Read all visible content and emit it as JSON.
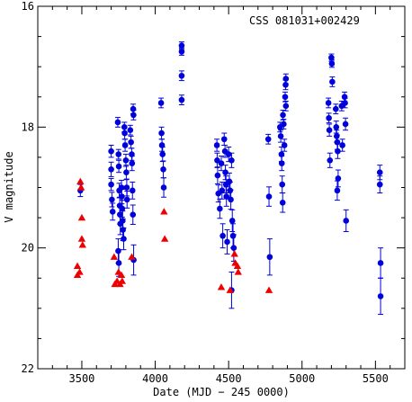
{
  "chart_data": {
    "type": "scatter",
    "annotation": "CSS 081031+002429",
    "xlabel": "Date (MJD − 245 0000)",
    "ylabel": "V magnitude",
    "xlim": [
      3200,
      5700
    ],
    "ylim": [
      22,
      16
    ],
    "y_inverted": true,
    "grid": false,
    "xticks": [
      3500,
      4000,
      4500,
      5000,
      5500
    ],
    "yticks": [
      16,
      18,
      20,
      22
    ],
    "colors": {
      "detections": "#0000dd",
      "limits": "#ee0000"
    },
    "series": [
      {
        "marker": "circle",
        "points": [
          {
            "x": 3490,
            "y": 19.05,
            "e": 0.1
          },
          {
            "x": 3700,
            "y": 18.4,
            "e": 0.1
          },
          {
            "x": 3700,
            "y": 18.7,
            "e": 0.12
          },
          {
            "x": 3700,
            "y": 18.95,
            "e": 0.1
          },
          {
            "x": 3705,
            "y": 19.2,
            "e": 0.12
          },
          {
            "x": 3710,
            "y": 19.4,
            "e": 0.14
          },
          {
            "x": 3745,
            "y": 17.92,
            "e": 0.08
          },
          {
            "x": 3750,
            "y": 18.45,
            "e": 0.08
          },
          {
            "x": 3752,
            "y": 18.65,
            "e": 0.1
          },
          {
            "x": 3755,
            "y": 19.05,
            "e": 0.12
          },
          {
            "x": 3758,
            "y": 19.3,
            "e": 0.14
          },
          {
            "x": 3760,
            "y": 19.45,
            "e": 0.16
          },
          {
            "x": 3762,
            "y": 19.6,
            "e": 0.18
          },
          {
            "x": 3748,
            "y": 20.05,
            "e": 0.2
          },
          {
            "x": 3752,
            "y": 20.25,
            "e": 0.22
          },
          {
            "x": 3770,
            "y": 19.0,
            "e": 0.12
          },
          {
            "x": 3772,
            "y": 19.15,
            "e": 0.12
          },
          {
            "x": 3775,
            "y": 19.35,
            "e": 0.14
          },
          {
            "x": 3778,
            "y": 19.55,
            "e": 0.16
          },
          {
            "x": 3780,
            "y": 19.7,
            "e": 0.18
          },
          {
            "x": 3785,
            "y": 19.85,
            "e": 0.18
          },
          {
            "x": 3790,
            "y": 18.0,
            "e": 0.08
          },
          {
            "x": 3792,
            "y": 18.1,
            "e": 0.1
          },
          {
            "x": 3795,
            "y": 18.3,
            "e": 0.1
          },
          {
            "x": 3800,
            "y": 18.55,
            "e": 0.1
          },
          {
            "x": 3803,
            "y": 18.75,
            "e": 0.12
          },
          {
            "x": 3806,
            "y": 19.0,
            "e": 0.14
          },
          {
            "x": 3808,
            "y": 19.2,
            "e": 0.14
          },
          {
            "x": 3830,
            "y": 18.05,
            "e": 0.08
          },
          {
            "x": 3835,
            "y": 18.25,
            "e": 0.1
          },
          {
            "x": 3840,
            "y": 18.45,
            "e": 0.1
          },
          {
            "x": 3842,
            "y": 18.6,
            "e": 0.12
          },
          {
            "x": 3845,
            "y": 19.05,
            "e": 0.14
          },
          {
            "x": 3848,
            "y": 19.45,
            "e": 0.16
          },
          {
            "x": 3850,
            "y": 17.7,
            "e": 0.08
          },
          {
            "x": 3852,
            "y": 17.8,
            "e": 0.08
          },
          {
            "x": 3853,
            "y": 20.2,
            "e": 0.25
          },
          {
            "x": 4040,
            "y": 17.6,
            "e": 0.08
          },
          {
            "x": 4043,
            "y": 18.1,
            "e": 0.1
          },
          {
            "x": 4046,
            "y": 18.3,
            "e": 0.1
          },
          {
            "x": 4050,
            "y": 18.45,
            "e": 0.12
          },
          {
            "x": 4055,
            "y": 18.7,
            "e": 0.14
          },
          {
            "x": 4058,
            "y": 19.0,
            "e": 0.16
          },
          {
            "x": 4180,
            "y": 16.65,
            "e": 0.06
          },
          {
            "x": 4180,
            "y": 16.75,
            "e": 0.06
          },
          {
            "x": 4180,
            "y": 17.15,
            "e": 0.08
          },
          {
            "x": 4180,
            "y": 17.55,
            "e": 0.08
          },
          {
            "x": 4420,
            "y": 18.3,
            "e": 0.1
          },
          {
            "x": 4422,
            "y": 18.55,
            "e": 0.12
          },
          {
            "x": 4425,
            "y": 18.8,
            "e": 0.14
          },
          {
            "x": 4430,
            "y": 19.1,
            "e": 0.14
          },
          {
            "x": 4440,
            "y": 19.35,
            "e": 0.16
          },
          {
            "x": 4450,
            "y": 18.6,
            "e": 0.12
          },
          {
            "x": 4455,
            "y": 19.05,
            "e": 0.14
          },
          {
            "x": 4460,
            "y": 19.8,
            "e": 0.2
          },
          {
            "x": 4470,
            "y": 18.2,
            "e": 0.1
          },
          {
            "x": 4475,
            "y": 18.4,
            "e": 0.1
          },
          {
            "x": 4478,
            "y": 18.75,
            "e": 0.12
          },
          {
            "x": 4482,
            "y": 18.95,
            "e": 0.14
          },
          {
            "x": 4485,
            "y": 19.15,
            "e": 0.16
          },
          {
            "x": 4490,
            "y": 19.9,
            "e": 0.2
          },
          {
            "x": 4500,
            "y": 18.45,
            "e": 0.12
          },
          {
            "x": 4505,
            "y": 18.9,
            "e": 0.14
          },
          {
            "x": 4510,
            "y": 19.05,
            "e": 0.14
          },
          {
            "x": 4515,
            "y": 19.2,
            "e": 0.16
          },
          {
            "x": 4520,
            "y": 18.55,
            "e": 0.12
          },
          {
            "x": 4525,
            "y": 19.55,
            "e": 0.18
          },
          {
            "x": 4530,
            "y": 19.8,
            "e": 0.2
          },
          {
            "x": 4535,
            "y": 20.0,
            "e": 0.22
          },
          {
            "x": 4520,
            "y": 20.7,
            "e": 0.3
          },
          {
            "x": 4770,
            "y": 18.2,
            "e": 0.08
          },
          {
            "x": 4775,
            "y": 19.15,
            "e": 0.16
          },
          {
            "x": 4780,
            "y": 20.15,
            "e": 0.3
          },
          {
            "x": 4850,
            "y": 18.0,
            "e": 0.08
          },
          {
            "x": 4855,
            "y": 18.15,
            "e": 0.1
          },
          {
            "x": 4860,
            "y": 18.45,
            "e": 0.12
          },
          {
            "x": 4862,
            "y": 18.6,
            "e": 0.12
          },
          {
            "x": 4865,
            "y": 18.95,
            "e": 0.14
          },
          {
            "x": 4868,
            "y": 19.25,
            "e": 0.16
          },
          {
            "x": 4870,
            "y": 17.8,
            "e": 0.08
          },
          {
            "x": 4875,
            "y": 17.95,
            "e": 0.08
          },
          {
            "x": 4880,
            "y": 18.3,
            "e": 0.1
          },
          {
            "x": 4885,
            "y": 17.5,
            "e": 0.08
          },
          {
            "x": 4888,
            "y": 17.3,
            "e": 0.08
          },
          {
            "x": 4890,
            "y": 17.2,
            "e": 0.08
          },
          {
            "x": 4890,
            "y": 17.65,
            "e": 0.08
          },
          {
            "x": 5180,
            "y": 17.6,
            "e": 0.08
          },
          {
            "x": 5183,
            "y": 17.85,
            "e": 0.08
          },
          {
            "x": 5186,
            "y": 18.05,
            "e": 0.1
          },
          {
            "x": 5190,
            "y": 18.55,
            "e": 0.12
          },
          {
            "x": 5200,
            "y": 16.85,
            "e": 0.06
          },
          {
            "x": 5203,
            "y": 16.95,
            "e": 0.06
          },
          {
            "x": 5206,
            "y": 17.25,
            "e": 0.08
          },
          {
            "x": 5230,
            "y": 17.7,
            "e": 0.08
          },
          {
            "x": 5233,
            "y": 18.0,
            "e": 0.1
          },
          {
            "x": 5236,
            "y": 18.15,
            "e": 0.1
          },
          {
            "x": 5240,
            "y": 18.25,
            "e": 0.12
          },
          {
            "x": 5243,
            "y": 18.4,
            "e": 0.12
          },
          {
            "x": 5246,
            "y": 18.85,
            "e": 0.14
          },
          {
            "x": 5240,
            "y": 19.05,
            "e": 0.16
          },
          {
            "x": 5270,
            "y": 17.65,
            "e": 0.08
          },
          {
            "x": 5275,
            "y": 18.3,
            "e": 0.1
          },
          {
            "x": 5290,
            "y": 17.5,
            "e": 0.08
          },
          {
            "x": 5293,
            "y": 17.6,
            "e": 0.08
          },
          {
            "x": 5296,
            "y": 17.95,
            "e": 0.1
          },
          {
            "x": 5300,
            "y": 19.55,
            "e": 0.18
          },
          {
            "x": 5530,
            "y": 18.75,
            "e": 0.12
          },
          {
            "x": 5530,
            "y": 18.95,
            "e": 0.14
          },
          {
            "x": 5535,
            "y": 20.25,
            "e": 0.25
          },
          {
            "x": 5535,
            "y": 20.8,
            "e": 0.3
          }
        ]
      },
      {
        "marker": "triangle",
        "points": [
          {
            "x": 3470,
            "y": 20.3
          },
          {
            "x": 3470,
            "y": 20.45
          },
          {
            "x": 3485,
            "y": 20.4
          },
          {
            "x": 3490,
            "y": 18.9
          },
          {
            "x": 3495,
            "y": 19.0
          },
          {
            "x": 3500,
            "y": 19.5
          },
          {
            "x": 3500,
            "y": 19.85
          },
          {
            "x": 3505,
            "y": 19.95
          },
          {
            "x": 3720,
            "y": 20.15
          },
          {
            "x": 3725,
            "y": 20.6
          },
          {
            "x": 3740,
            "y": 20.55
          },
          {
            "x": 3750,
            "y": 20.4
          },
          {
            "x": 3760,
            "y": 20.6
          },
          {
            "x": 3770,
            "y": 20.45
          },
          {
            "x": 3775,
            "y": 20.55
          },
          {
            "x": 3840,
            "y": 20.15
          },
          {
            "x": 4060,
            "y": 19.4
          },
          {
            "x": 4065,
            "y": 19.85
          },
          {
            "x": 4450,
            "y": 20.65
          },
          {
            "x": 4510,
            "y": 20.7
          },
          {
            "x": 4540,
            "y": 20.1
          },
          {
            "x": 4545,
            "y": 20.25
          },
          {
            "x": 4560,
            "y": 20.3
          },
          {
            "x": 4565,
            "y": 20.4
          },
          {
            "x": 4775,
            "y": 20.7
          }
        ]
      }
    ]
  }
}
